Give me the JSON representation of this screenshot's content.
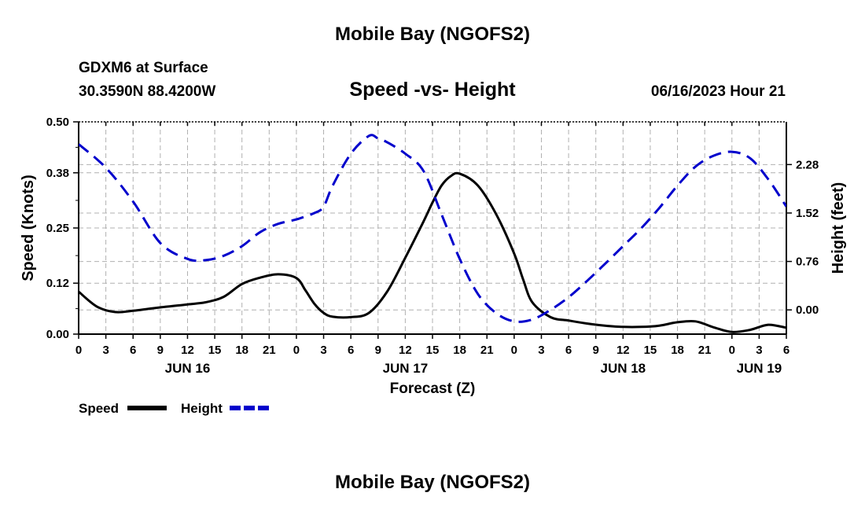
{
  "header": {
    "top_title": "Mobile Bay (NGOFS2)",
    "station": "GDXM6 at Surface",
    "coords": "30.3590N  88.4200W",
    "subtitle": "Speed -vs- Height",
    "timestamp": "06/16/2023 Hour 21"
  },
  "footer": {
    "bottom_title": "Mobile Bay (NGOFS2)"
  },
  "chart_data": {
    "type": "line",
    "title": "Speed -vs- Height",
    "xlabel": "Forecast (Z)",
    "ylabel_left": "Speed (Knots)",
    "ylabel_right": "Height (feet)",
    "x_range": [
      0,
      78
    ],
    "x_ticks": [
      0,
      3,
      6,
      9,
      12,
      15,
      18,
      21,
      24,
      27,
      30,
      33,
      36,
      39,
      42,
      45,
      48,
      51,
      54,
      57,
      60,
      63,
      66,
      69,
      72,
      75,
      78
    ],
    "x_tick_labels": [
      "0",
      "3",
      "6",
      "9",
      "12",
      "15",
      "18",
      "21",
      "0",
      "3",
      "6",
      "9",
      "12",
      "15",
      "18",
      "21",
      "0",
      "3",
      "6",
      "9",
      "12",
      "15",
      "18",
      "21",
      "0",
      "3",
      "6"
    ],
    "date_labels": [
      {
        "x": 12,
        "label": "JUN 16"
      },
      {
        "x": 36,
        "label": "JUN 17"
      },
      {
        "x": 60,
        "label": "JUN 18"
      },
      {
        "x": 75,
        "label": "JUN 19"
      }
    ],
    "y_left": {
      "range": [
        0,
        0.5
      ],
      "ticks": [
        0.0,
        0.12,
        0.25,
        0.38,
        0.5
      ],
      "tick_labels": [
        "0.00",
        "0.12",
        "0.25",
        "0.38",
        "0.50"
      ]
    },
    "y_right": {
      "range": [
        -0.38,
        2.95
      ],
      "ticks": [
        0.0,
        0.76,
        1.52,
        2.28
      ],
      "tick_labels": [
        "0.00",
        "0.76",
        "1.52",
        "2.28"
      ]
    },
    "grid": true,
    "legend_position": "bottom-left",
    "series": [
      {
        "name": "Speed",
        "axis": "left",
        "color": "#000000",
        "dash": "solid",
        "x": [
          0,
          2,
          4,
          6,
          9,
          12,
          14,
          16,
          18,
          20,
          22,
          24,
          25,
          26,
          27,
          28,
          30,
          32,
          34,
          36,
          38,
          39,
          40,
          41,
          42,
          44,
          46,
          48,
          49,
          50,
          52,
          54,
          56,
          58,
          60,
          62,
          64,
          66,
          68,
          70,
          72,
          74,
          76,
          78
        ],
        "y": [
          0.1,
          0.065,
          0.052,
          0.055,
          0.063,
          0.07,
          0.075,
          0.088,
          0.118,
          0.133,
          0.141,
          0.132,
          0.103,
          0.071,
          0.05,
          0.041,
          0.04,
          0.05,
          0.1,
          0.18,
          0.265,
          0.31,
          0.35,
          0.372,
          0.378,
          0.35,
          0.283,
          0.19,
          0.128,
          0.075,
          0.04,
          0.032,
          0.025,
          0.02,
          0.017,
          0.017,
          0.02,
          0.028,
          0.03,
          0.016,
          0.005,
          0.01,
          0.022,
          0.015
        ]
      },
      {
        "name": "Height",
        "axis": "right",
        "color": "#0000cc",
        "dash": "dashed",
        "x": [
          0,
          3,
          6,
          9,
          12,
          14,
          16,
          18,
          20,
          22,
          24,
          26,
          27,
          28,
          30,
          32,
          33,
          34,
          36,
          38,
          40,
          42,
          44,
          46,
          48,
          50,
          52,
          54,
          56,
          58,
          60,
          62,
          64,
          66,
          68,
          70,
          72,
          74,
          76,
          78
        ],
        "y": [
          2.6,
          2.23,
          1.7,
          1.05,
          0.8,
          0.78,
          0.85,
          1.0,
          1.22,
          1.35,
          1.42,
          1.52,
          1.62,
          1.95,
          2.45,
          2.73,
          2.69,
          2.63,
          2.45,
          2.18,
          1.5,
          0.8,
          0.25,
          -0.05,
          -0.18,
          -0.15,
          0.0,
          0.2,
          0.45,
          0.72,
          1.0,
          1.28,
          1.6,
          1.95,
          2.25,
          2.42,
          2.48,
          2.38,
          2.05,
          1.62
        ]
      }
    ]
  }
}
